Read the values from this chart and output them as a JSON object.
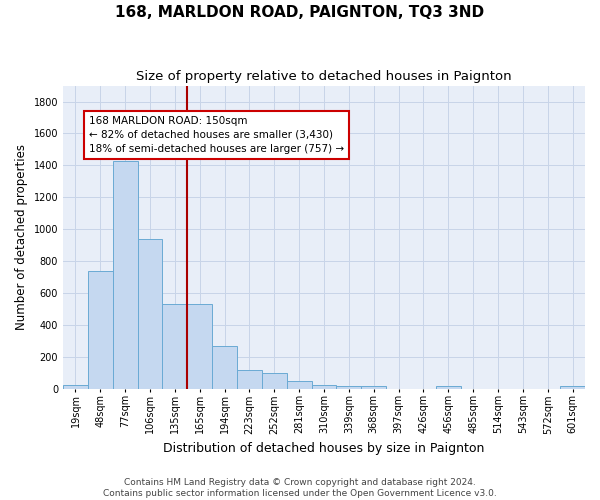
{
  "title": "168, MARLDON ROAD, PAIGNTON, TQ3 3ND",
  "subtitle": "Size of property relative to detached houses in Paignton",
  "xlabel": "Distribution of detached houses by size in Paignton",
  "ylabel": "Number of detached properties",
  "footer_line1": "Contains HM Land Registry data © Crown copyright and database right 2024.",
  "footer_line2": "Contains public sector information licensed under the Open Government Licence v3.0.",
  "categories": [
    "19sqm",
    "48sqm",
    "77sqm",
    "106sqm",
    "135sqm",
    "165sqm",
    "194sqm",
    "223sqm",
    "252sqm",
    "281sqm",
    "310sqm",
    "339sqm",
    "368sqm",
    "397sqm",
    "426sqm",
    "456sqm",
    "485sqm",
    "514sqm",
    "543sqm",
    "572sqm",
    "601sqm"
  ],
  "values": [
    25,
    740,
    1430,
    940,
    530,
    530,
    265,
    115,
    100,
    45,
    25,
    15,
    15,
    0,
    0,
    15,
    0,
    0,
    0,
    0,
    15
  ],
  "bar_color": "#c5d8f0",
  "bar_edge_color": "#6aaad4",
  "annotation_text": "168 MARLDON ROAD: 150sqm\n← 82% of detached houses are smaller (3,430)\n18% of semi-detached houses are larger (757) →",
  "annotation_box_color": "white",
  "annotation_box_edge_color": "#cc0000",
  "vline_index": 5,
  "vline_color": "#aa0000",
  "ylim": [
    0,
    1900
  ],
  "yticks": [
    0,
    200,
    400,
    600,
    800,
    1000,
    1200,
    1400,
    1600,
    1800
  ],
  "grid_color": "#c8d4e8",
  "background_color": "#e8eef8",
  "title_fontsize": 11,
  "subtitle_fontsize": 9.5,
  "xlabel_fontsize": 9,
  "ylabel_fontsize": 8.5,
  "tick_fontsize": 7,
  "annotation_fontsize": 7.5,
  "footer_fontsize": 6.5
}
